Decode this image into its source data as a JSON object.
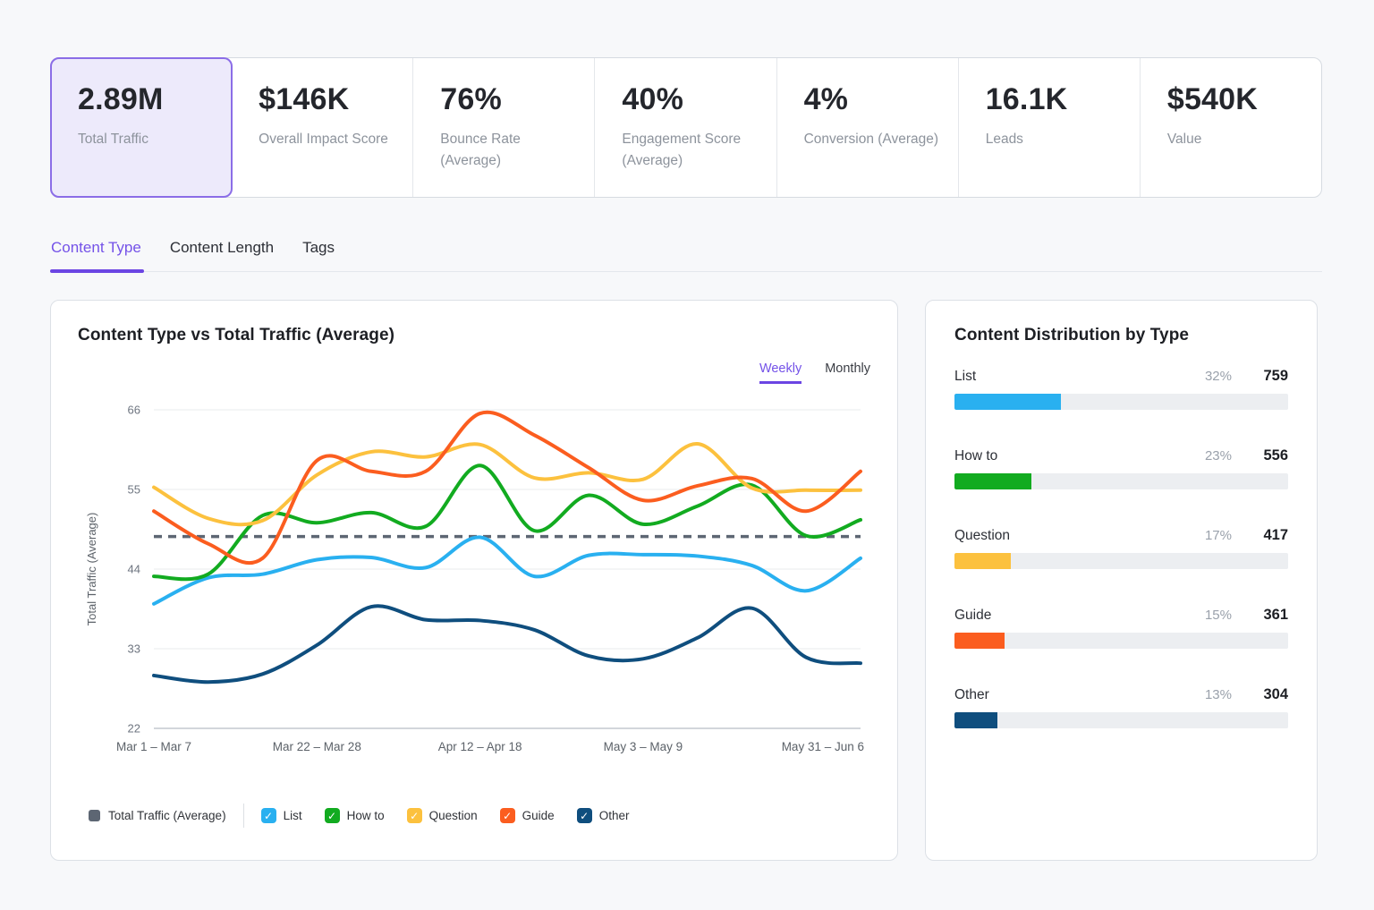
{
  "stats": {
    "cards": [
      {
        "value": "2.89M",
        "label": "Total Traffic",
        "selected": true
      },
      {
        "value": "$146K",
        "label": "Overall Impact Score",
        "selected": false
      },
      {
        "value": "76%",
        "label": "Bounce Rate (Average)",
        "selected": false
      },
      {
        "value": "40%",
        "label": "Engagement Score (Average)",
        "selected": false
      },
      {
        "value": "4%",
        "label": "Conversion (Average)",
        "selected": false
      },
      {
        "value": "16.1K",
        "label": "Leads",
        "selected": false
      },
      {
        "value": "$540K",
        "label": "Value",
        "selected": false
      }
    ]
  },
  "tabs": [
    {
      "label": "Content Type",
      "active": true
    },
    {
      "label": "Content Length",
      "active": false
    },
    {
      "label": "Tags",
      "active": false
    }
  ],
  "chart_panel": {
    "title": "Content Type vs Total Traffic (Average)",
    "toggle": {
      "options": [
        "Weekly",
        "Monthly"
      ],
      "selected": "Weekly"
    }
  },
  "chart_data": {
    "type": "line",
    "title": "Content Type vs Total Traffic (Average)",
    "ylabel": "Total Traffic (Average)",
    "ylim": [
      22,
      66
    ],
    "yticks": [
      22,
      33,
      44,
      55,
      66
    ],
    "grid": "horizontal",
    "legend_position": "bottom",
    "x_count": 14,
    "x_unit": "week",
    "x_ticks": [
      {
        "i": 0,
        "label": "Mar 1 – Mar 7"
      },
      {
        "i": 3,
        "label": "Mar 22 – Mar 28"
      },
      {
        "i": 6,
        "label": "Apr 12 – Apr 18"
      },
      {
        "i": 9,
        "label": "May 3 – May 9"
      },
      {
        "i": 13,
        "label": "May 31 – Jun 6"
      }
    ],
    "average_line": {
      "label": "Total Traffic (Average)",
      "value": 48.5,
      "color": "#5d6673",
      "style": "dashed"
    },
    "series": [
      {
        "name": "List",
        "color": "#29b0f0",
        "values": [
          39.2,
          42.8,
          43.3,
          45.3,
          45.6,
          44.2,
          48.4,
          43.0,
          45.9,
          46.0,
          45.8,
          44.5,
          41.0,
          45.5
        ]
      },
      {
        "name": "How to",
        "color": "#12ab20",
        "values": [
          43.0,
          43.3,
          51.4,
          50.4,
          51.8,
          49.9,
          58.3,
          49.3,
          54.2,
          50.2,
          52.7,
          55.6,
          48.6,
          50.8
        ]
      },
      {
        "name": "Question",
        "color": "#fcc13e",
        "values": [
          55.3,
          51.0,
          50.7,
          57.0,
          60.2,
          59.5,
          61.2,
          56.6,
          57.3,
          56.4,
          61.3,
          55.2,
          54.9,
          54.9
        ]
      },
      {
        "name": "Guide",
        "color": "#fb5d1f",
        "values": [
          52.0,
          47.5,
          45.5,
          59.0,
          57.5,
          57.5,
          65.5,
          62.5,
          58.0,
          53.5,
          55.5,
          56.5,
          52.0,
          57.5
        ]
      },
      {
        "name": "Other",
        "color": "#0f4e7e",
        "values": [
          29.3,
          28.4,
          29.5,
          33.5,
          38.8,
          37.0,
          36.9,
          35.6,
          32.0,
          31.6,
          34.5,
          38.6,
          31.8,
          31.0
        ]
      }
    ]
  },
  "distribution": {
    "title": "Content Distribution by Type",
    "rows": [
      {
        "label": "List",
        "percent": "32%",
        "count": "759",
        "color": "#29b0f0"
      },
      {
        "label": "How to",
        "percent": "23%",
        "count": "556",
        "color": "#12ab20"
      },
      {
        "label": "Question",
        "percent": "17%",
        "count": "417",
        "color": "#fcc13e"
      },
      {
        "label": "Guide",
        "percent": "15%",
        "count": "361",
        "color": "#fb5d1f"
      },
      {
        "label": "Other",
        "percent": "13%",
        "count": "304",
        "color": "#0f4e7e"
      }
    ]
  }
}
